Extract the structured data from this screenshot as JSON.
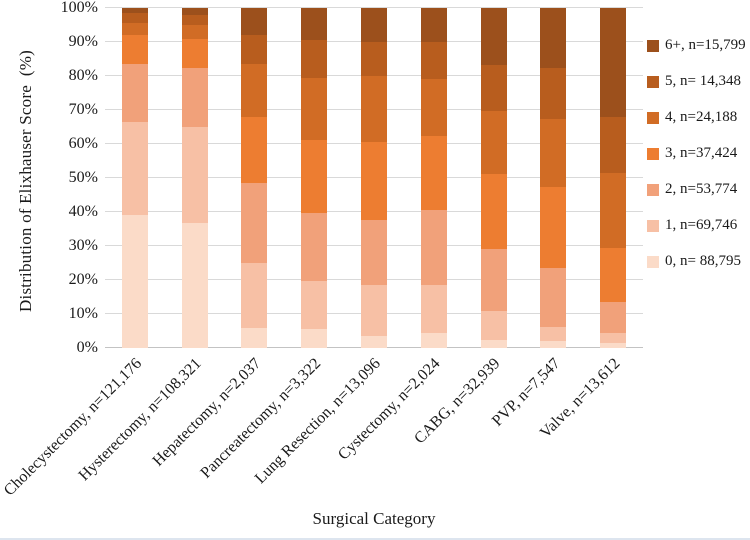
{
  "figure": {
    "background": "#ffffff",
    "gridline_color": "#d9d9d9"
  },
  "chart_data": {
    "type": "bar",
    "stacked": true,
    "units": "percent",
    "title": "",
    "xlabel": "Surgical Category",
    "ylabel": "Distribution of Elixhauser Score  (%)",
    "ylim": [
      0,
      100
    ],
    "grid": true,
    "legend_position": "right",
    "ytick_labels": [
      "0%",
      "10%",
      "20%",
      "30%",
      "40%",
      "50%",
      "60%",
      "70%",
      "80%",
      "90%",
      "100%"
    ],
    "categories": [
      "Cholecystectomy, n=121,176",
      "Hysterectomy, n=108,321",
      "Hepatectomy, n=2,037",
      "Pancreatectomy, n=3,322",
      "Lung Resection, n=13,096",
      "Cystectomy, n=2,024",
      "CABG, n=32,939",
      "PVP, n=7,547",
      "Valve, n=13,612"
    ],
    "series": [
      {
        "id": "0",
        "name": "0",
        "legend_label": "0, n= 88,795",
        "color": "#FBDBC8",
        "values": [
          39,
          36.7,
          6,
          5.5,
          3.4,
          4.4,
          2.4,
          2,
          1.5
        ]
      },
      {
        "id": "1",
        "name": "1",
        "legend_label": "1, n=69,746",
        "color": "#F7C0A5",
        "values": [
          27.5,
          28.3,
          19.1,
          14.1,
          15.2,
          14.2,
          8.6,
          4.3,
          3
        ]
      },
      {
        "id": "2",
        "name": "2",
        "legend_label": "2, n=53,774",
        "color": "#F1A17A",
        "values": [
          17.1,
          17.3,
          23.4,
          20,
          19,
          22.1,
          18.2,
          17.2,
          9
        ]
      },
      {
        "id": "3",
        "name": "3",
        "legend_label": "3, n=37,424",
        "color": "#ED7D31",
        "values": [
          8.4,
          8.5,
          19.5,
          21.6,
          23.1,
          21.8,
          22.1,
          24,
          16
        ]
      },
      {
        "id": "4",
        "name": "4",
        "legend_label": "4, n=24,188",
        "color": "#D16C25",
        "values": [
          3.7,
          4.3,
          15.5,
          18.3,
          19.3,
          16.7,
          18.4,
          20,
          22
        ]
      },
      {
        "id": "5",
        "name": "5",
        "legend_label": "5, n= 14,348",
        "color": "#B85D1E",
        "values": [
          2.7,
          2.9,
          8.7,
          11,
          10,
          10.8,
          13.6,
          15,
          16.5
        ]
      },
      {
        "id": "6plus",
        "name": "6+",
        "legend_label": "6+, n=15,799",
        "color": "#9C501C",
        "values": [
          1.6,
          2,
          7.8,
          9.5,
          10,
          10,
          16.7,
          17.5,
          32
        ]
      }
    ],
    "legend_order_top_to_bottom": [
      "6+",
      "5",
      "4",
      "3",
      "2",
      "1",
      "0"
    ]
  }
}
